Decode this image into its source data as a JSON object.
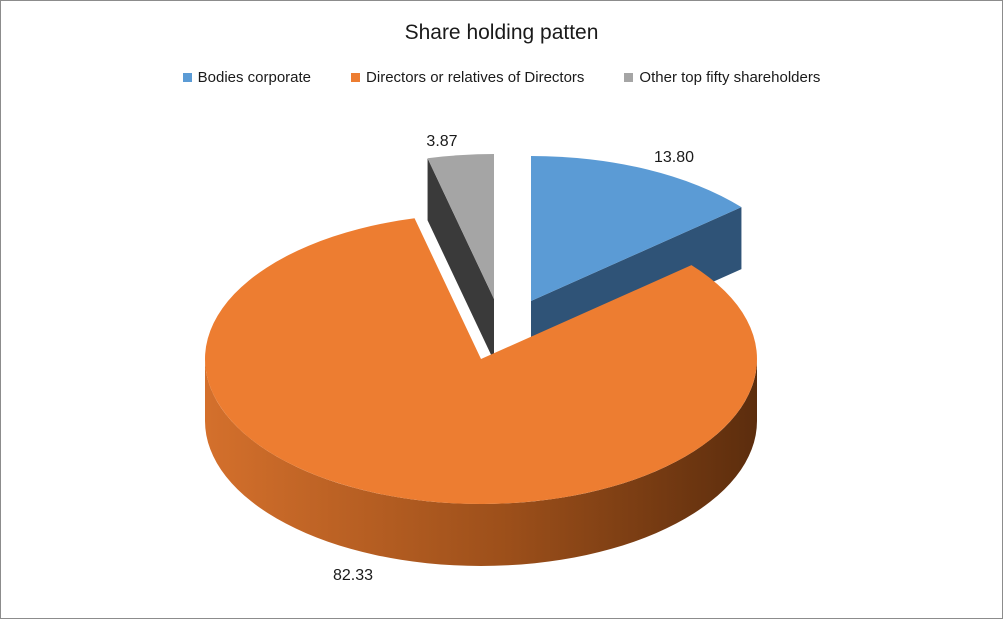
{
  "chart_data": {
    "type": "pie",
    "title": "Share holding patten",
    "categories": [
      "Bodies corporate",
      "Directors or relatives of Directors",
      "Other top fifty shareholders"
    ],
    "values": [
      13.8,
      82.33,
      3.87
    ],
    "value_labels": [
      "13.80",
      "82.33",
      "3.87"
    ],
    "colors": [
      "#5b9bd5",
      "#ed7d31",
      "#a5a5a5"
    ],
    "side_colors": [
      "#2f5377",
      "#8b4515",
      "#3a3a3a"
    ],
    "legend_position": "top",
    "style": "3d-exploded"
  }
}
